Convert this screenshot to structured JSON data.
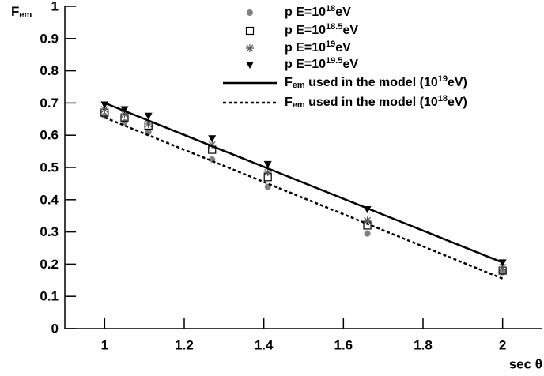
{
  "chart_data": {
    "type": "scatter",
    "x_label": "sec θ",
    "y_label": [
      "F",
      "em"
    ],
    "xlim": [
      0.9,
      2.1
    ],
    "ylim": [
      0,
      1
    ],
    "xticks": [
      1,
      1.2,
      1.4,
      1.6,
      1.8,
      2
    ],
    "yticks": [
      0,
      0.1,
      0.2,
      0.3,
      0.4,
      0.5,
      0.6,
      0.7,
      0.8,
      0.9,
      1
    ],
    "grid": false,
    "legend": "top-center",
    "x": [
      1,
      1.05,
      1.11,
      1.27,
      1.41,
      1.66,
      2
    ],
    "series": [
      {
        "name": [
          "p E=10",
          "18",
          "eV"
        ],
        "marker": "circle",
        "color": "#808080",
        "values": [
          0.66,
          0.64,
          0.61,
          0.525,
          0.44,
          0.295,
          0.175
        ]
      },
      {
        "name": [
          "p E=10",
          "18.5",
          "eV"
        ],
        "marker": "square",
        "color": "#000000",
        "values": [
          0.67,
          0.655,
          0.63,
          0.555,
          0.47,
          0.32,
          0.18
        ]
      },
      {
        "name": [
          "p E=10",
          "19",
          "eV"
        ],
        "marker": "star",
        "color": "#555555",
        "values": [
          0.68,
          0.665,
          0.635,
          0.57,
          0.485,
          0.335,
          0.19
        ]
      },
      {
        "name": [
          "p E=10",
          "19.5",
          "eV"
        ],
        "marker": "triangle-down",
        "color": "#000000",
        "values": [
          0.695,
          0.68,
          0.66,
          0.59,
          0.51,
          0.37,
          0.205
        ]
      },
      {
        "name": [
          "F",
          "em",
          " used in the model (10",
          "19",
          "eV)"
        ],
        "type": "line",
        "style": "solid",
        "color": "#000000",
        "x": [
          1,
          2
        ],
        "values": [
          0.7,
          0.205
        ]
      },
      {
        "name": [
          "F",
          "em",
          " used in the model (10",
          "18",
          "eV)"
        ],
        "type": "line",
        "style": "dashed",
        "color": "#000000",
        "x": [
          1,
          2
        ],
        "values": [
          0.655,
          0.155
        ]
      }
    ]
  }
}
